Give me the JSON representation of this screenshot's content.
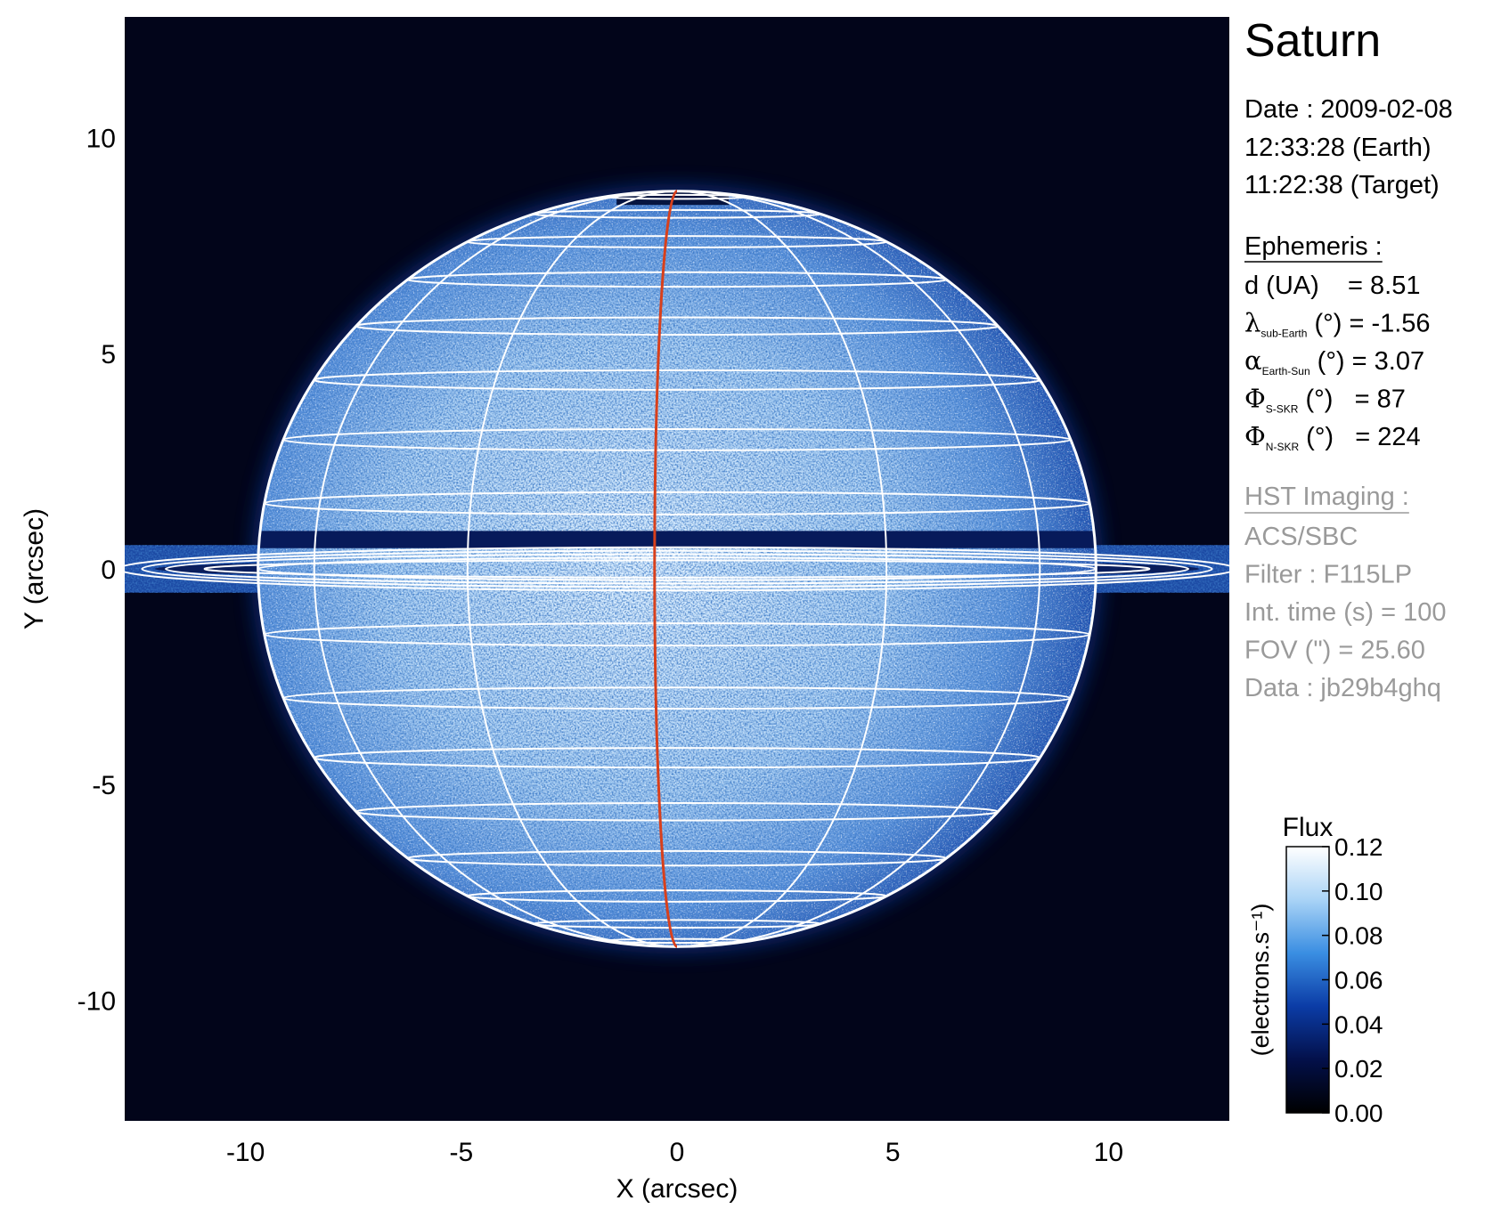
{
  "chart_data": {
    "type": "image",
    "title": "Saturn",
    "x_label": "X (arcsec)",
    "y_label": "Y (arcsec)",
    "xlim": [
      -12.8,
      12.8
    ],
    "ylim": [
      -12.8,
      12.8
    ],
    "xticks": [
      -10,
      -5,
      0,
      5,
      10
    ],
    "yticks": [
      -10,
      -5,
      0,
      5,
      10
    ],
    "colormap": [
      "#000000",
      "#03104a",
      "#0b3ca6",
      "#3a8ee2",
      "#a9d3f6",
      "#ffffff"
    ],
    "colorbar": {
      "title": "Flux",
      "label": "(electrons.s⁻¹)",
      "lim": [
        0,
        0.12
      ],
      "ticks": [
        {
          "value": 0,
          "label": "0.00"
        },
        {
          "value": 0.02,
          "label": "0.02"
        },
        {
          "value": 0.04,
          "label": "0.04"
        },
        {
          "value": 0.06,
          "label": "0.06"
        },
        {
          "value": 0.08,
          "label": "0.08"
        },
        {
          "value": 0.1,
          "label": "0.10"
        },
        {
          "value": 0.12,
          "label": "0.12"
        }
      ]
    },
    "info": {
      "date": "Date : 2009-02-08",
      "earth_time": "12:33:28 (Earth)",
      "target_time": "11:22:38 (Target)",
      "ephemeris_title": "Ephemeris :",
      "ephemeris": [
        {
          "text": "d (UA)    = 8.51"
        },
        {
          "symbol": "λ",
          "subscript": "sub-Earth",
          "text": " (°) = -1.56"
        },
        {
          "symbol": "α",
          "subscript": "Earth-Sun",
          "text": " (°) = 3.07"
        },
        {
          "symbol": "Φ",
          "subscript": "S-SKR",
          "text": " (°)   = 87"
        },
        {
          "symbol": "Φ",
          "subscript": "N-SKR",
          "text": " (°)   = 224"
        }
      ],
      "imaging_title": "HST Imaging :",
      "imaging": [
        "ACS/SBC",
        "Filter : F115LP",
        "Int. time (s) = 100",
        "FOV (\") = 25.60",
        "Data : jb29b4ghq"
      ]
    }
  }
}
